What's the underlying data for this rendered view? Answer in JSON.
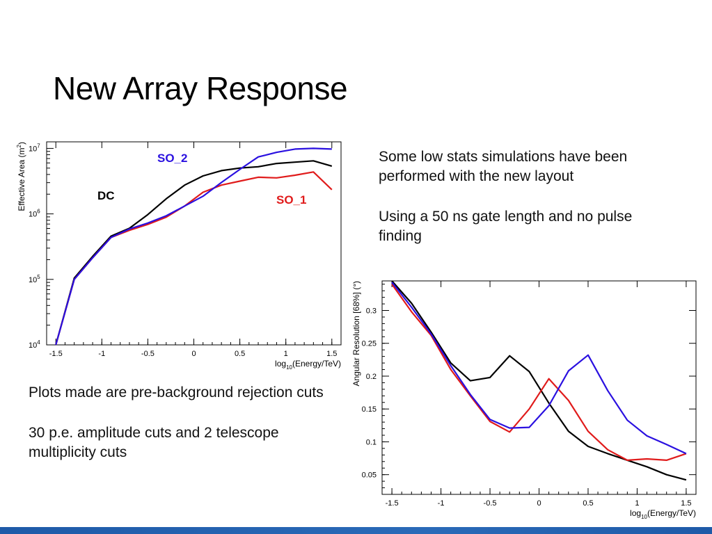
{
  "slide": {
    "title": "New Array Response",
    "notes_right": [
      "Some low stats simulations have been performed with the new layout",
      "Using a 50 ns gate length and no pulse finding"
    ],
    "notes_left": [
      "Plots made are pre-background rejection cuts",
      "30 p.e. amplitude cuts and 2 telescope multiplicity cuts"
    ]
  },
  "colors": {
    "DC": "#000000",
    "SO_1": "#e01b1b",
    "SO_2": "#2a10e0",
    "bottom_bar": "#1e5aa8"
  },
  "chart_data": [
    {
      "id": "effective-area",
      "type": "line",
      "ylabel": "Effective Area (m²)",
      "xlabel": "log10(Energy/TeV)",
      "xlim": [
        -1.6,
        1.6
      ],
      "ylim_log10": [
        4,
        7.1
      ],
      "ylog": true,
      "x_ticks": [
        -1.5,
        -1,
        -0.5,
        0,
        0.5,
        1,
        1.5
      ],
      "x_tick_labels": [
        "-1.5",
        "-1",
        "-0.5",
        "0",
        "0.5",
        "1",
        "1.5"
      ],
      "y_ticks_log10": [
        4,
        5,
        6,
        7
      ],
      "y_tick_labels": [
        "10",
        "10",
        "10",
        "10"
      ],
      "y_tick_exponents": [
        "4",
        "5",
        "6",
        "7"
      ],
      "series": [
        {
          "name": "DC",
          "color_key": "DC",
          "x": [
            -1.5,
            -1.3,
            -1.1,
            -0.9,
            -0.7,
            -0.5,
            -0.3,
            -0.1,
            0.1,
            0.3,
            0.5,
            0.7,
            0.9,
            1.1,
            1.3,
            1.5
          ],
          "log10_y": [
            4.0,
            5.02,
            5.35,
            5.66,
            5.78,
            5.99,
            6.23,
            6.44,
            6.58,
            6.66,
            6.7,
            6.72,
            6.77,
            6.79,
            6.81,
            6.73
          ]
        },
        {
          "name": "SO_1",
          "color_key": "SO_1",
          "x": [
            -1.5,
            -1.3,
            -1.1,
            -0.9,
            -0.7,
            -0.5,
            -0.3,
            -0.1,
            0.1,
            0.3,
            0.5,
            0.7,
            0.9,
            1.1,
            1.3,
            1.5
          ],
          "log10_y": [
            4.0,
            5.0,
            5.33,
            5.64,
            5.75,
            5.84,
            5.95,
            6.12,
            6.33,
            6.44,
            6.5,
            6.56,
            6.55,
            6.59,
            6.64,
            6.37
          ]
        },
        {
          "name": "SO_2",
          "color_key": "SO_2",
          "x": [
            -1.5,
            -1.3,
            -1.1,
            -0.9,
            -0.7,
            -0.5,
            -0.3,
            -0.1,
            0.1,
            0.3,
            0.5,
            0.7,
            0.9,
            1.1,
            1.3,
            1.5
          ],
          "log10_y": [
            4.0,
            5.0,
            5.33,
            5.64,
            5.77,
            5.86,
            5.97,
            6.12,
            6.27,
            6.48,
            6.68,
            6.87,
            6.94,
            6.99,
            7.0,
            6.99
          ]
        }
      ],
      "labels": [
        {
          "text": "SO_2",
          "color_key": "SO_2"
        },
        {
          "text": "DC",
          "color_key": "DC"
        },
        {
          "text": "SO_1",
          "color_key": "SO_1"
        }
      ]
    },
    {
      "id": "angular-resolution",
      "type": "line",
      "ylabel": "Angular Resolution [68%] (°)",
      "xlabel": "log10(Energy/TeV)",
      "xlim": [
        -1.6,
        1.6
      ],
      "ylim": [
        0.02,
        0.345
      ],
      "x_ticks": [
        -1.5,
        -1,
        -0.5,
        0,
        0.5,
        1,
        1.5
      ],
      "x_tick_labels": [
        "-1.5",
        "-1",
        "-0.5",
        "0",
        "0.5",
        "1",
        "1.5"
      ],
      "y_ticks": [
        0.05,
        0.1,
        0.15,
        0.2,
        0.25,
        0.3
      ],
      "y_tick_labels": [
        "0.05",
        "0.1",
        "0.15",
        "0.2",
        "0.25",
        "0.3"
      ],
      "series": [
        {
          "name": "DC",
          "color_key": "DC",
          "x": [
            -1.5,
            -1.3,
            -1.1,
            -0.9,
            -0.7,
            -0.5,
            -0.3,
            -0.1,
            0.1,
            0.3,
            0.5,
            0.7,
            0.9,
            1.1,
            1.3,
            1.5
          ],
          "y": [
            0.345,
            0.311,
            0.267,
            0.22,
            0.193,
            0.198,
            0.231,
            0.207,
            0.159,
            0.116,
            0.093,
            0.082,
            0.072,
            0.062,
            0.05,
            0.042
          ]
        },
        {
          "name": "SO_1",
          "color_key": "SO_1",
          "x": [
            -1.5,
            -1.3,
            -1.1,
            -0.9,
            -0.7,
            -0.5,
            -0.3,
            -0.1,
            0.1,
            0.3,
            0.5,
            0.7,
            0.9,
            1.1,
            1.3,
            1.5
          ],
          "y": [
            0.34,
            0.298,
            0.262,
            0.21,
            0.17,
            0.131,
            0.115,
            0.15,
            0.196,
            0.163,
            0.116,
            0.088,
            0.072,
            0.074,
            0.072,
            0.082
          ]
        },
        {
          "name": "SO_2",
          "color_key": "SO_2",
          "x": [
            -1.5,
            -1.3,
            -1.1,
            -0.9,
            -0.7,
            -0.5,
            -0.3,
            -0.1,
            0.1,
            0.3,
            0.5,
            0.7,
            0.9,
            1.1,
            1.3,
            1.5
          ],
          "y": [
            0.343,
            0.305,
            0.264,
            0.216,
            0.172,
            0.134,
            0.121,
            0.122,
            0.155,
            0.208,
            0.232,
            0.178,
            0.133,
            0.109,
            0.096,
            0.082
          ]
        }
      ]
    }
  ]
}
